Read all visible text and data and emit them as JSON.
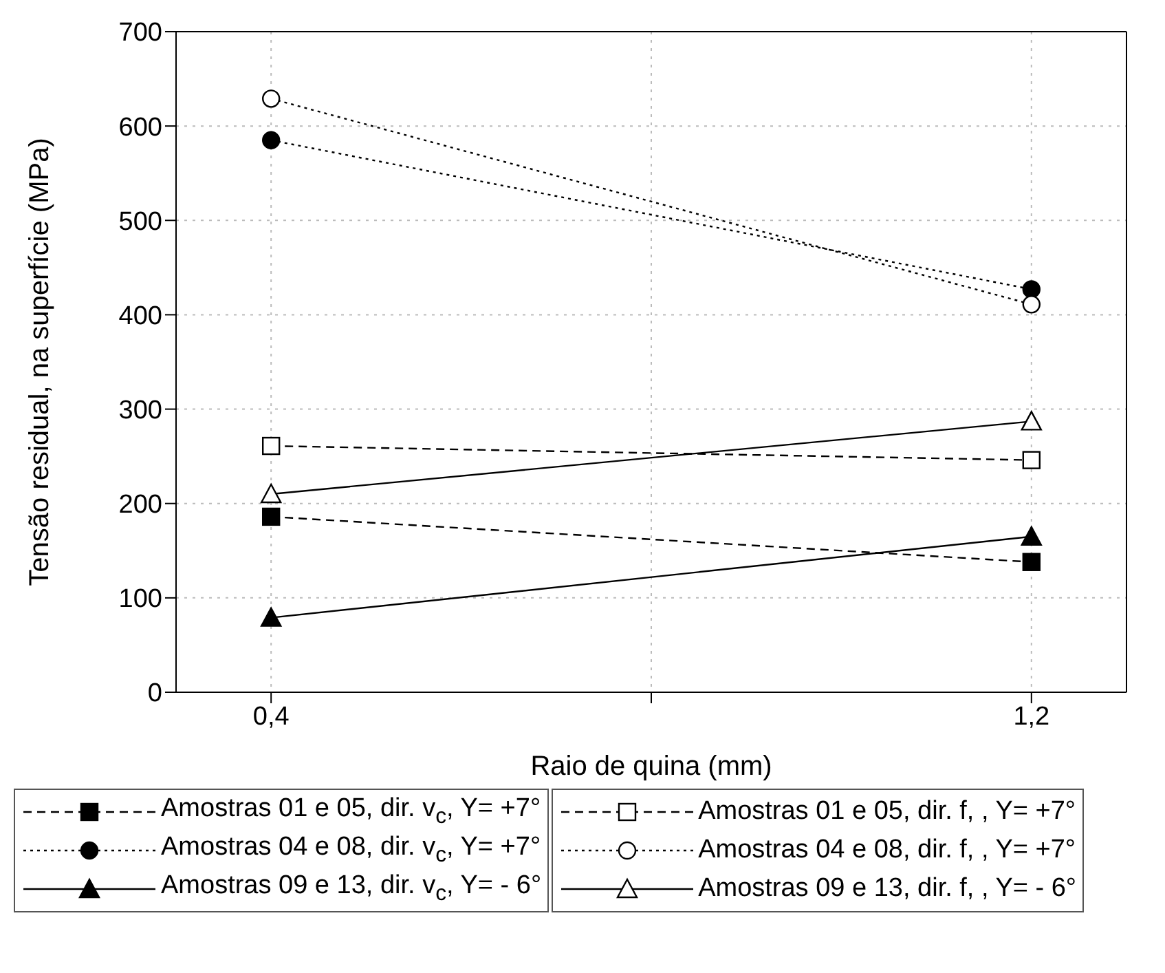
{
  "chart_data": {
    "type": "line",
    "xlabel": "Raio de quina (mm)",
    "ylabel": "Tensão residual, na superfície (MPa)",
    "x": [
      0.4,
      1.2
    ],
    "xlim": [
      0.3,
      1.3
    ],
    "xticks": [
      {
        "value": 0.4,
        "label": "0,4"
      },
      {
        "value": 0.8,
        "label": null
      },
      {
        "value": 1.2,
        "label": "1,2"
      }
    ],
    "ylim": [
      0,
      700
    ],
    "yticks": [
      0,
      100,
      200,
      300,
      400,
      500,
      600,
      700
    ],
    "grid": true,
    "legend": "bottom",
    "series": [
      {
        "name": "Amostras 01 e 05, dir. v$_{c}$, Y= +7°",
        "color": "#000000",
        "values": [
          186,
          138
        ],
        "marker": "square",
        "line_style": "dashed"
      },
      {
        "name": "Amostras 04 e 08, dir. v$_{c}$, Y= +7°",
        "color": "#000000",
        "values": [
          585,
          427
        ],
        "marker": "circle",
        "line_style": "dotted"
      },
      {
        "name": "Amostras 09 e 13, dir. v$_{c}$, Y= - 6°",
        "color": "#000000",
        "values": [
          79,
          165
        ],
        "marker": "triangle",
        "line_style": "solid"
      },
      {
        "name": "Amostras 01 e 05, dir. f, , Y= +7°",
        "color": "#000000",
        "values": [
          261,
          246
        ],
        "marker": "square-open",
        "line_style": "dashed"
      },
      {
        "name": "Amostras 04 e 08, dir. f, , Y= +7°",
        "color": "#000000",
        "values": [
          629,
          411
        ],
        "marker": "circle-open",
        "line_style": "dotted"
      },
      {
        "name": "Amostras 09 e 13, dir. f, , Y= - 6°",
        "color": "#000000",
        "values": [
          210,
          287
        ],
        "marker": "triangle-open",
        "line_style": "solid"
      }
    ]
  }
}
